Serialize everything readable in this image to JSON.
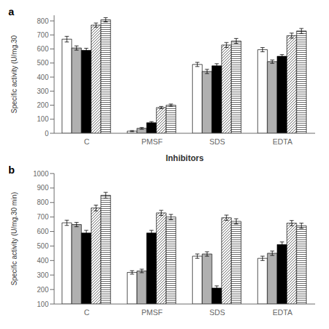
{
  "chart_data": [
    {
      "type": "bar",
      "title": "a",
      "xlabel": "Inhibitors",
      "ylabel": "Specific activity (U/mg.30",
      "categories": [
        "C",
        "PMSF",
        "SDS",
        "EDTA"
      ],
      "ylim": [
        0,
        840
      ],
      "yticks": [
        0,
        100,
        200,
        300,
        400,
        500,
        600,
        700,
        800
      ],
      "series": [
        {
          "color": "#ffffff",
          "values": [
            670,
            15,
            490,
            595
          ],
          "errors": [
            20,
            4,
            15,
            15
          ]
        },
        {
          "color": "#b0b0b0",
          "values": [
            607,
            35,
            440,
            510
          ],
          "errors": [
            15,
            6,
            15,
            12
          ]
        },
        {
          "color": "#000000",
          "values": [
            590,
            75,
            480,
            548
          ],
          "errors": [
            15,
            8,
            15,
            12
          ]
        },
        {
          "color": "#ffffff",
          "values": [
            770,
            183,
            628,
            695
          ],
          "errors": [
            15,
            8,
            18,
            18
          ]
        },
        {
          "color": "#ffffff",
          "values": [
            808,
            200,
            657,
            728
          ],
          "errors": [
            15,
            8,
            18,
            18
          ]
        }
      ]
    },
    {
      "type": "bar",
      "title": "b",
      "ylabel": "Specific activity (U/mg.30 min)",
      "categories": [
        "C",
        "PMSF",
        "SDS",
        "EDTA"
      ],
      "ylim": [
        100,
        1000
      ],
      "yticks": [
        100,
        200,
        300,
        400,
        500,
        600,
        700,
        800,
        900,
        1000
      ],
      "series": [
        {
          "color": "#ffffff",
          "values": [
            660,
            318,
            430,
            415
          ],
          "errors": [
            18,
            12,
            15,
            15
          ]
        },
        {
          "color": "#b0b0b0",
          "values": [
            648,
            328,
            445,
            450
          ],
          "errors": [
            15,
            12,
            15,
            15
          ]
        },
        {
          "color": "#000000",
          "values": [
            590,
            590,
            210,
            510
          ],
          "errors": [
            18,
            18,
            15,
            18
          ]
        },
        {
          "color": "#ffffff",
          "values": [
            762,
            728,
            695,
            658
          ],
          "errors": [
            20,
            18,
            18,
            18
          ]
        },
        {
          "color": "#ffffff",
          "values": [
            850,
            700,
            670,
            640
          ],
          "errors": [
            20,
            18,
            18,
            18
          ]
        }
      ]
    }
  ]
}
